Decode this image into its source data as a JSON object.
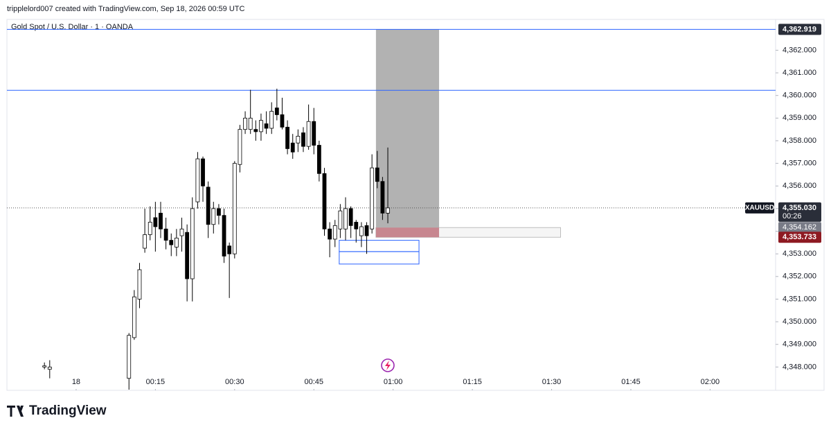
{
  "header": {
    "caption": "tripplelord007 created with TradingView.com, Sep 18, 2026 00:59 UTC"
  },
  "chart_data": {
    "type": "candlestick",
    "title": "Gold Spot / U.S. Dollar · 1 · OANDA",
    "x": [
      -6,
      -5,
      10,
      11,
      12,
      13,
      14,
      15,
      16,
      17,
      18,
      19,
      20,
      21,
      22,
      23,
      24,
      25,
      26,
      27,
      28,
      29,
      30,
      31,
      32,
      33,
      34,
      35,
      36,
      37,
      38,
      39,
      40,
      41,
      42,
      43,
      44,
      45,
      46,
      47,
      48,
      49,
      50,
      51,
      52,
      53,
      54,
      55,
      56,
      57,
      58,
      59
    ],
    "open": [
      4348.0,
      4347.9,
      4347.5,
      4349.3,
      4351.0,
      4353.25,
      4353.85,
      4354.6,
      4354.8,
      4354.1,
      4353.6,
      4353.3,
      4353.8,
      4353.95,
      4351.9,
      4355.3,
      4357.2,
      4355.95,
      4354.3,
      4355.0,
      4354.7,
      4353.35,
      4353.0,
      4356.95,
      4358.5,
      4358.5,
      4358.5,
      4358.4,
      4358.75,
      4358.55,
      4359.45,
      4359.15,
      4358.6,
      4357.9,
      4357.9,
      4358.35,
      4357.75,
      4358.85,
      4357.8,
      4356.55,
      4354.1,
      4353.65,
      4354.1,
      4354.1,
      4355.0,
      4354.4,
      4353.8,
      4354.25,
      4354.1,
      4356.8,
      4356.2,
      4354.8
    ],
    "high": [
      4348.2,
      4348.3,
      4349.5,
      4351.4,
      4352.6,
      4355.0,
      4355.1,
      4355.3,
      4355.3,
      4354.6,
      4353.9,
      4354.1,
      4354.6,
      4354.3,
      4355.5,
      4357.5,
      4357.3,
      4356.2,
      4355.3,
      4355.2,
      4355.0,
      4353.5,
      4357.1,
      4358.7,
      4359.3,
      4360.25,
      4358.9,
      4359.2,
      4359.3,
      4359.7,
      4360.3,
      4359.9,
      4358.9,
      4358.3,
      4358.5,
      4358.6,
      4359.6,
      4359.45,
      4358.0,
      4356.8,
      4354.4,
      4354.5,
      4355.2,
      4355.5,
      4355.1,
      4354.5,
      4354.4,
      4354.4,
      4357.4,
      4357.55,
      4356.4,
      4357.7
    ],
    "low": [
      4347.9,
      4347.5,
      4347.0,
      4349.2,
      4350.6,
      4353.05,
      4353.6,
      4353.1,
      4353.7,
      4353.2,
      4352.9,
      4352.9,
      4353.1,
      4350.9,
      4350.9,
      4355.0,
      4355.3,
      4353.7,
      4353.9,
      4354.3,
      4352.6,
      4351.05,
      4352.8,
      4356.6,
      4358.3,
      4358.3,
      4358.0,
      4358.0,
      4358.3,
      4358.3,
      4358.9,
      4358.5,
      4357.4,
      4357.2,
      4357.5,
      4357.5,
      4357.6,
      4357.4,
      4356.2,
      4353.8,
      4352.85,
      4353.3,
      4353.7,
      4353.6,
      4353.7,
      4353.5,
      4353.3,
      4353.0,
      4353.9,
      4355.9,
      4354.5,
      4354.35
    ],
    "close": [
      4348.05,
      4348.0,
      4349.4,
      4351.1,
      4352.3,
      4353.85,
      4354.4,
      4354.2,
      4354.1,
      4353.6,
      4353.4,
      4353.7,
      4354.1,
      4351.9,
      4355.0,
      4357.2,
      4356.0,
      4354.3,
      4355.0,
      4354.7,
      4352.9,
      4353.0,
      4357.0,
      4358.5,
      4359.0,
      4359.0,
      4358.4,
      4358.9,
      4358.55,
      4359.3,
      4359.15,
      4358.6,
      4357.65,
      4357.5,
      4358.2,
      4357.75,
      4358.85,
      4357.8,
      4356.55,
      4354.1,
      4353.65,
      4354.25,
      4354.9,
      4355.0,
      4354.25,
      4354.1,
      4354.2,
      4353.8,
      4356.8,
      4356.2,
      4354.8,
      4355.03
    ],
    "up_color": "#ffffff",
    "down_color": "#000000",
    "outline_color": "#000000",
    "xlim": [
      -13.1,
      132.4
    ],
    "xticks": [
      {
        "value": 0,
        "label": "18"
      },
      {
        "value": 15,
        "label": "00:15"
      },
      {
        "value": 30,
        "label": "00:30"
      },
      {
        "value": 45,
        "label": "00:45"
      },
      {
        "value": 60,
        "label": "01:00"
      },
      {
        "value": 75,
        "label": "01:15"
      },
      {
        "value": 90,
        "label": "01:30"
      },
      {
        "value": 105,
        "label": "01:45"
      },
      {
        "value": 120,
        "label": "02:00"
      }
    ],
    "ylim": [
      4347.0,
      4363.3
    ],
    "yticks": [
      {
        "value": 4348,
        "label": "4,348.000"
      },
      {
        "value": 4349,
        "label": "4,349.000"
      },
      {
        "value": 4350,
        "label": "4,350.000"
      },
      {
        "value": 4351,
        "label": "4,351.000"
      },
      {
        "value": 4352,
        "label": "4,352.000"
      },
      {
        "value": 4353,
        "label": "4,353.000"
      },
      {
        "value": 4354,
        "label": "4,354.000"
      },
      {
        "value": 4355,
        "label": "4,355.000"
      },
      {
        "value": 4356,
        "label": "4,356.000"
      },
      {
        "value": 4357,
        "label": "4,357.000"
      },
      {
        "value": 4358,
        "label": "4,358.000"
      },
      {
        "value": 4359,
        "label": "4,359.000"
      },
      {
        "value": 4360,
        "label": "4,360.000"
      },
      {
        "value": 4361,
        "label": "4,361.000"
      },
      {
        "value": 4362,
        "label": "4,362.000"
      }
    ],
    "last_price": {
      "symbol": "XAUUSD",
      "value": 4355.03,
      "label": "4,355.030",
      "countdown": "00:26"
    },
    "horizontal_lines": [
      {
        "value": 4362.919,
        "label": "4,362.919"
      },
      {
        "value": 4360.23
      }
    ],
    "line_color": "#2962ff",
    "position": {
      "x_start": 56.75,
      "x_end": 68.7,
      "zone_end": 91.7,
      "target": 4362.919,
      "entry": 4354.162,
      "entry_label": "4,354.162",
      "stop": 4353.733,
      "stop_label": "4,353.733",
      "target_color": "#b2b2b2",
      "stop_color": "#c7868f"
    },
    "boxes": [
      {
        "x_start": 49.8,
        "x_end": 64.9,
        "top": 4353.6,
        "bottom": 4353.1
      },
      {
        "x_start": 49.8,
        "x_end": 64.9,
        "top": 4353.1,
        "bottom": 4352.55
      }
    ]
  },
  "footer": {
    "brand": "TradingView"
  }
}
